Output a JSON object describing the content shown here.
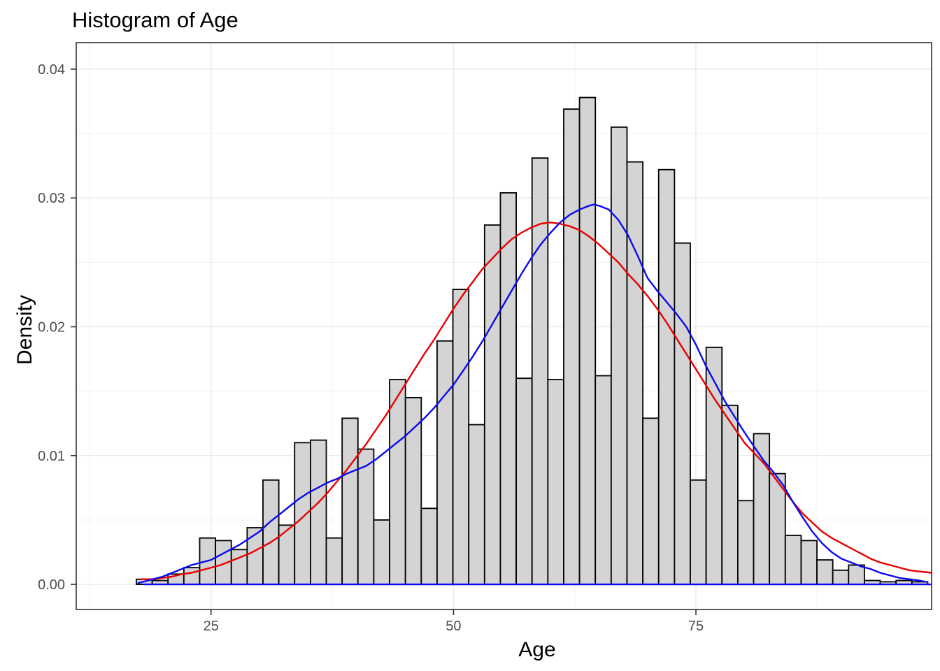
{
  "title": "Histogram of Age",
  "axes": {
    "x": {
      "title": "Age",
      "tick_values": [
        25,
        50,
        75
      ],
      "tick_labels": [
        "25",
        "50",
        "75"
      ],
      "minor_gridlines": [
        12.5,
        37.5,
        62.5,
        87.5
      ],
      "range": [
        11.1,
        99.3
      ]
    },
    "y": {
      "title": "Density",
      "tick_values": [
        0,
        0.01,
        0.02,
        0.03,
        0.04
      ],
      "tick_labels": [
        "0.00",
        "0.01",
        "0.02",
        "0.03",
        "0.04"
      ],
      "minor_gridlines": [
        0.005,
        0.015,
        0.025,
        0.035
      ],
      "range": [
        -0.00195,
        0.04206
      ]
    }
  },
  "colors": {
    "bar_fill": "#D4D4D4",
    "bar_stroke": "#000000",
    "density_curve": "#0B0BEE",
    "normal_curve": "#E80000",
    "grid_major": "#E9E9E9",
    "grid_minor": "#F3F3F3",
    "panel_background": "#FFFFFF",
    "panel_border": "#333333",
    "tick_mark": "#333333",
    "axis_text": "#4D4D4D",
    "title_text": "#000000"
  },
  "chart_data": {
    "type": "bar",
    "subtype": "histogram-with-density-curves",
    "title": "Histogram of Age",
    "xlabel": "Age",
    "ylabel": "Density",
    "xlim": [
      11.1,
      99.3
    ],
    "ylim": [
      -0.00195,
      0.04206
    ],
    "grid": "on",
    "legend": "none",
    "bin_start": 17.3,
    "bin_width": 1.632,
    "bar_densities": [
      0.0004,
      0.0003,
      0.0008,
      0.0013,
      0.0036,
      0.0034,
      0.0027,
      0.0044,
      0.0081,
      0.0046,
      0.011,
      0.0112,
      0.0036,
      0.0129,
      0.0105,
      0.005,
      0.0159,
      0.0145,
      0.0059,
      0.0189,
      0.0229,
      0.0124,
      0.0279,
      0.0304,
      0.016,
      0.0331,
      0.0159,
      0.0369,
      0.0378,
      0.0162,
      0.0355,
      0.0328,
      0.0129,
      0.0322,
      0.0265,
      0.0081,
      0.0184,
      0.0139,
      0.0065,
      0.0117,
      0.0086,
      0.0038,
      0.0034,
      0.0019,
      0.0011,
      0.0015,
      0.0003,
      0.0002,
      0.0003,
      0.0002
    ],
    "series": [
      {
        "name": "kernel-density-curve",
        "color": "#0B0BEE",
        "points": [
          [
            17.5,
            0.0001
          ],
          [
            18,
            0.0002
          ],
          [
            19,
            0.0004
          ],
          [
            20,
            0.0006
          ],
          [
            21,
            0.0009
          ],
          [
            22,
            0.0012
          ],
          [
            23,
            0.0015
          ],
          [
            24,
            0.0017
          ],
          [
            25,
            0.0019
          ],
          [
            26,
            0.0023
          ],
          [
            27,
            0.0027
          ],
          [
            28,
            0.0031
          ],
          [
            29,
            0.0036
          ],
          [
            30,
            0.0041
          ],
          [
            31,
            0.0048
          ],
          [
            32,
            0.0054
          ],
          [
            33,
            0.006
          ],
          [
            34,
            0.0066
          ],
          [
            35,
            0.0071
          ],
          [
            36,
            0.0075
          ],
          [
            37,
            0.0079
          ],
          [
            38,
            0.0082
          ],
          [
            39,
            0.0086
          ],
          [
            40,
            0.0089
          ],
          [
            41,
            0.0092
          ],
          [
            42,
            0.0097
          ],
          [
            43,
            0.0103
          ],
          [
            44,
            0.0109
          ],
          [
            45,
            0.0115
          ],
          [
            46,
            0.0122
          ],
          [
            47,
            0.0129
          ],
          [
            48,
            0.0137
          ],
          [
            49,
            0.0146
          ],
          [
            50,
            0.0155
          ],
          [
            51,
            0.0166
          ],
          [
            52,
            0.0177
          ],
          [
            53,
            0.0189
          ],
          [
            54,
            0.0202
          ],
          [
            55,
            0.0215
          ],
          [
            56,
            0.0228
          ],
          [
            57,
            0.0241
          ],
          [
            58,
            0.0253
          ],
          [
            59,
            0.0264
          ],
          [
            60,
            0.0273
          ],
          [
            61,
            0.0281
          ],
          [
            62,
            0.0287
          ],
          [
            63,
            0.0291
          ],
          [
            64,
            0.0294
          ],
          [
            64.5,
            0.0295
          ],
          [
            65,
            0.0294
          ],
          [
            66,
            0.0291
          ],
          [
            67,
            0.0283
          ],
          [
            68,
            0.0271
          ],
          [
            69,
            0.0255
          ],
          [
            70,
            0.0238
          ],
          [
            71,
            0.0228
          ],
          [
            72,
            0.0219
          ],
          [
            73,
            0.021
          ],
          [
            74,
            0.02
          ],
          [
            75,
            0.0186
          ],
          [
            76,
            0.017
          ],
          [
            77,
            0.0156
          ],
          [
            78,
            0.0142
          ],
          [
            79,
            0.013
          ],
          [
            80,
            0.0118
          ],
          [
            81,
            0.0107
          ],
          [
            82,
            0.0096
          ],
          [
            83,
            0.0087
          ],
          [
            84,
            0.0077
          ],
          [
            85,
            0.0064
          ],
          [
            86,
            0.0052
          ],
          [
            87,
            0.0041
          ],
          [
            88,
            0.0032
          ],
          [
            89,
            0.0025
          ],
          [
            90,
            0.002
          ],
          [
            91,
            0.0017
          ],
          [
            92,
            0.0014
          ],
          [
            93,
            0.0012
          ],
          [
            94,
            0.0009
          ],
          [
            95,
            0.0007
          ],
          [
            96,
            0.0005
          ],
          [
            97,
            0.0004
          ],
          [
            98,
            0.0003
          ],
          [
            98.7,
            0.0002
          ]
        ]
      },
      {
        "name": "normal-fit-curve",
        "color": "#E80000",
        "points": [
          [
            17.8,
            0.0004
          ],
          [
            19,
            0.0004
          ],
          [
            20,
            0.0005
          ],
          [
            21,
            0.0006
          ],
          [
            22,
            0.0008
          ],
          [
            23,
            0.0009
          ],
          [
            24,
            0.0011
          ],
          [
            25,
            0.0013
          ],
          [
            26,
            0.0015
          ],
          [
            27,
            0.0018
          ],
          [
            28,
            0.0021
          ],
          [
            29,
            0.0024
          ],
          [
            30,
            0.0028
          ],
          [
            31,
            0.0032
          ],
          [
            32,
            0.0037
          ],
          [
            33,
            0.0043
          ],
          [
            34,
            0.0049
          ],
          [
            35,
            0.0056
          ],
          [
            36,
            0.0063
          ],
          [
            37,
            0.0071
          ],
          [
            38,
            0.008
          ],
          [
            39,
            0.0089
          ],
          [
            40,
            0.0099
          ],
          [
            41,
            0.0109
          ],
          [
            42,
            0.012
          ],
          [
            43,
            0.0131
          ],
          [
            44,
            0.0143
          ],
          [
            45,
            0.0155
          ],
          [
            46,
            0.0167
          ],
          [
            47,
            0.0179
          ],
          [
            48,
            0.019
          ],
          [
            49,
            0.0202
          ],
          [
            50,
            0.0214
          ],
          [
            51,
            0.0225
          ],
          [
            52,
            0.0235
          ],
          [
            53,
            0.0245
          ],
          [
            54,
            0.0253
          ],
          [
            55,
            0.0261
          ],
          [
            56,
            0.0268
          ],
          [
            57,
            0.0273
          ],
          [
            58,
            0.0277
          ],
          [
            59,
            0.028
          ],
          [
            60,
            0.0281
          ],
          [
            61,
            0.028
          ],
          [
            62,
            0.0278
          ],
          [
            63,
            0.0275
          ],
          [
            64,
            0.027
          ],
          [
            65,
            0.0264
          ],
          [
            66,
            0.0257
          ],
          [
            67,
            0.025
          ],
          [
            68,
            0.0241
          ],
          [
            69,
            0.0233
          ],
          [
            70,
            0.0224
          ],
          [
            71,
            0.0214
          ],
          [
            72,
            0.0203
          ],
          [
            73,
            0.0191
          ],
          [
            74,
            0.0179
          ],
          [
            75,
            0.0167
          ],
          [
            76,
            0.0155
          ],
          [
            77,
            0.0143
          ],
          [
            78,
            0.0132
          ],
          [
            79,
            0.0121
          ],
          [
            80,
            0.011
          ],
          [
            81,
            0.0102
          ],
          [
            82,
            0.0094
          ],
          [
            83,
            0.0084
          ],
          [
            84,
            0.0074
          ],
          [
            85,
            0.0064
          ],
          [
            86,
            0.0055
          ],
          [
            87,
            0.0048
          ],
          [
            88,
            0.0041
          ],
          [
            89,
            0.0036
          ],
          [
            90,
            0.0032
          ],
          [
            91,
            0.0028
          ],
          [
            92,
            0.0024
          ],
          [
            93,
            0.002
          ],
          [
            94,
            0.0017
          ],
          [
            95,
            0.0015
          ],
          [
            96,
            0.0013
          ],
          [
            97,
            0.0011
          ],
          [
            98,
            0.001
          ],
          [
            99.3,
            0.0009
          ]
        ]
      }
    ],
    "baseline": {
      "name": "zero-baseline",
      "color": "#0B0BEE",
      "y": 0,
      "x_from": 18,
      "x_to": 99.3
    }
  }
}
